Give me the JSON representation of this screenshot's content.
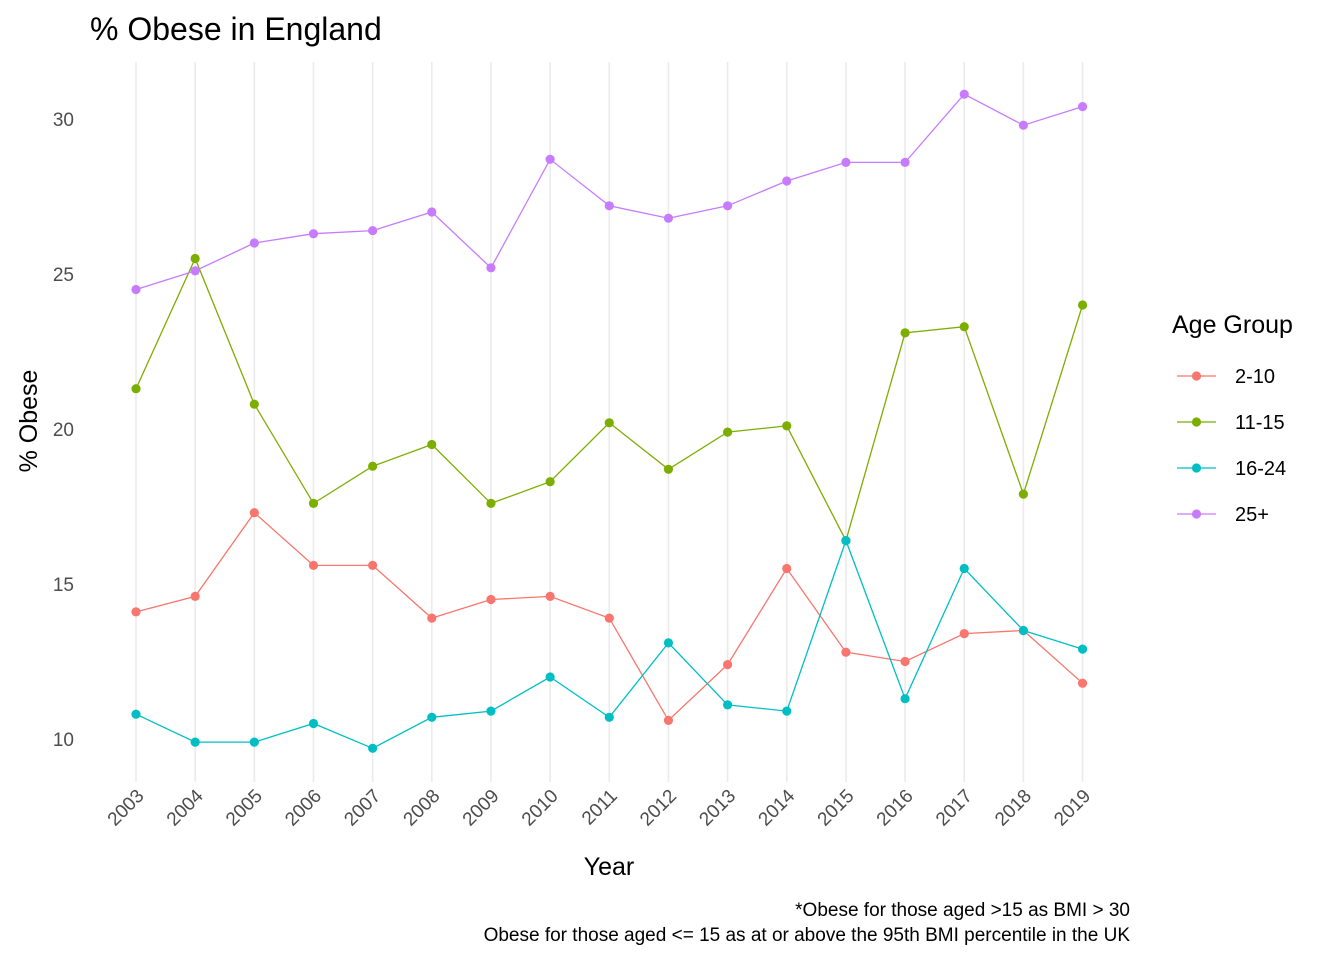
{
  "chart_data": {
    "type": "line",
    "title": "% Obese in England",
    "xlabel": "Year",
    "ylabel": "% Obese",
    "x": [
      "2003",
      "2004",
      "2005",
      "2006",
      "2007",
      "2008",
      "2009",
      "2010",
      "2011",
      "2012",
      "2013",
      "2014",
      "2015",
      "2016",
      "2017",
      "2018",
      "2019"
    ],
    "ylim": [
      8.8,
      31.8
    ],
    "yticks": [
      10,
      15,
      20,
      25,
      30
    ],
    "legend_title": "Age Group",
    "legend_position": "right",
    "grid": true,
    "caption_lines": [
      "*Obese for those aged >15 as BMI > 30",
      "Obese for those aged <= 15 as at or above the 95th BMI percentile in the UK"
    ],
    "series": [
      {
        "name": "2-10",
        "color": "#F8766D",
        "values": [
          14.1,
          14.6,
          17.3,
          15.6,
          15.6,
          13.9,
          14.5,
          14.6,
          13.9,
          10.6,
          12.4,
          15.5,
          12.8,
          12.5,
          13.4,
          13.5,
          11.8
        ]
      },
      {
        "name": "11-15",
        "color": "#7CAE00",
        "values": [
          21.3,
          25.5,
          20.8,
          17.6,
          18.8,
          19.5,
          17.6,
          18.3,
          20.2,
          18.7,
          19.9,
          20.1,
          16.4,
          23.1,
          23.3,
          17.9,
          24.0
        ]
      },
      {
        "name": "16-24",
        "color": "#00BFC4",
        "values": [
          10.8,
          9.9,
          9.9,
          10.5,
          9.7,
          10.7,
          10.9,
          12.0,
          10.7,
          13.1,
          11.1,
          10.9,
          16.4,
          11.3,
          15.5,
          13.5,
          12.9
        ]
      },
      {
        "name": "25+",
        "color": "#C77CFF",
        "values": [
          24.5,
          25.1,
          26.0,
          26.3,
          26.4,
          27.0,
          25.2,
          28.7,
          27.2,
          26.8,
          27.2,
          28.0,
          28.6,
          28.6,
          30.8,
          29.8,
          30.4
        ]
      }
    ]
  }
}
